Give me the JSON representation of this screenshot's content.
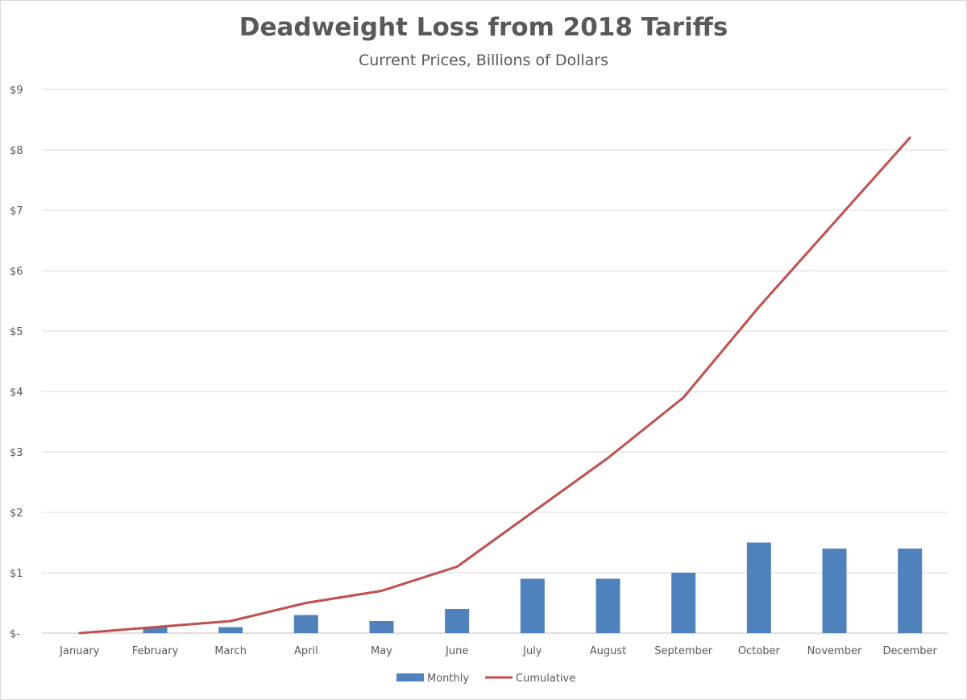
{
  "chart_data": {
    "type": "bar+line",
    "title": "Deadweight Loss from 2018 Tariffs",
    "subtitle": "Current Prices, Billions of Dollars",
    "categories": [
      "January",
      "February",
      "March",
      "April",
      "May",
      "June",
      "July",
      "August",
      "September",
      "October",
      "November",
      "December"
    ],
    "series": [
      {
        "name": "Monthly",
        "kind": "bar",
        "color": "#4f81bd",
        "values": [
          0,
          0.1,
          0.1,
          0.3,
          0.2,
          0.4,
          0.9,
          0.9,
          1.0,
          1.5,
          1.4,
          1.4
        ]
      },
      {
        "name": "Cumulative",
        "kind": "line",
        "color": "#c0504d",
        "values": [
          0,
          0.1,
          0.2,
          0.5,
          0.7,
          1.1,
          2.0,
          2.9,
          3.9,
          5.4,
          6.8,
          8.2
        ]
      }
    ],
    "ylim": [
      0,
      9
    ],
    "yticks": [
      0,
      1,
      2,
      3,
      4,
      5,
      6,
      7,
      8,
      9
    ],
    "ytick_labels": [
      "$-",
      "$1",
      "$2",
      "$3",
      "$4",
      "$5",
      "$6",
      "$7",
      "$8",
      "$9"
    ],
    "grid": true,
    "legend": "bottom-center"
  }
}
